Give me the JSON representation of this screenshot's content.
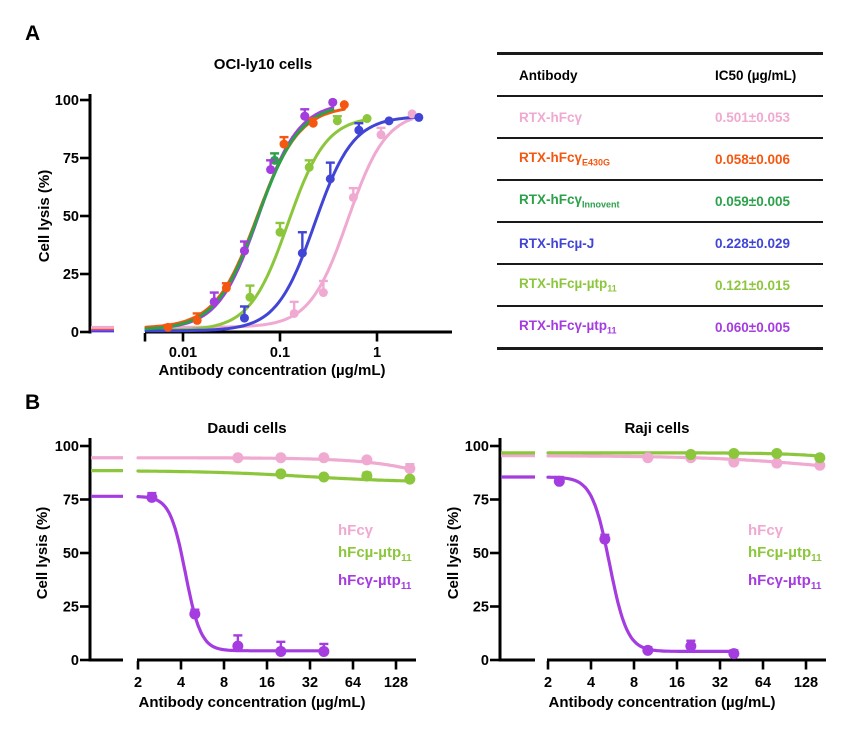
{
  "figure": {
    "background": "#ffffff"
  },
  "panel_a": {
    "label": "A"
  },
  "panel_b": {
    "label": "B"
  },
  "table": {
    "headers": [
      "Antibody",
      "IC50 (µg/mL)"
    ],
    "rows": [
      {
        "label_main": "RTX-hFcγ",
        "label_sub": "",
        "value": "0.501±0.053",
        "color": "#F0A9D0"
      },
      {
        "label_main": "RTX-hFcγ",
        "label_sub": "E430G",
        "value": "0.058±0.006",
        "color": "#F4570F"
      },
      {
        "label_main": "RTX-hFcγ",
        "label_sub": "Innovent",
        "value": "0.059±0.005",
        "color": "#2BA14A"
      },
      {
        "label_main": "RTX-hFcµ-J",
        "label_sub": "",
        "value": "0.228±0.029",
        "color": "#4145D6"
      },
      {
        "label_main": "RTX-hFcµ-µtp",
        "label_sub": "11",
        "value": "0.121±0.015",
        "color": "#8CC63C"
      },
      {
        "label_main": "RTX-hFcγ-µtp",
        "label_sub": "11",
        "value": "0.060±0.005",
        "color": "#A43CE0"
      }
    ]
  },
  "chart_data": [
    {
      "id": "oci",
      "type": "scatter",
      "title": "OCI-ly10 cells",
      "xlabel": "Antibody concentration (µg/mL)",
      "ylabel": "Cell lysis (%)",
      "xscale": "log10",
      "axis_break": true,
      "xticks": [
        "0.01",
        "0.1",
        "1"
      ],
      "xtick_values": [
        0.01,
        0.1,
        1
      ],
      "yticks": [
        0,
        25,
        50,
        75,
        100
      ],
      "ylim": [
        0,
        100
      ],
      "xlim": [
        0.004,
        5.9
      ],
      "series": [
        {
          "name": "RTX-hFcγ",
          "color": "#F0A9D0",
          "fit": {
            "top": 95,
            "bottom": 2.0,
            "ec50": 0.501,
            "hill": 2.2,
            "dir": "up"
          },
          "points": [
            [
              0.14,
              8,
              5
            ],
            [
              0.28,
              17,
              5
            ],
            [
              0.57,
              58,
              4
            ],
            [
              1.1,
              85,
              3
            ],
            [
              2.3,
              94,
              0
            ]
          ]
        },
        {
          "name": "RTX-hFcγ-E430G",
          "color": "#F4570F",
          "fit": {
            "top": 97.5,
            "bottom": 1.6,
            "ec50": 0.058,
            "hill": 2.0,
            "dir": "up"
          },
          "points": [
            [
              0.007,
              2,
              1
            ],
            [
              0.014,
              5,
              3
            ],
            [
              0.028,
              19,
              2
            ],
            [
              0.11,
              81,
              3
            ],
            [
              0.22,
              90,
              2
            ],
            [
              0.46,
              98,
              0
            ]
          ]
        },
        {
          "name": "RTX-hFcγ-Innovent",
          "color": "#2BA14A",
          "fit": {
            "top": 98.5,
            "bottom": 0.9,
            "ec50": 0.059,
            "hill": 2.0,
            "dir": "up"
          },
          "points": [
            [
              0.021,
              13,
              0
            ],
            [
              0.043,
              35,
              0
            ],
            [
              0.088,
              74,
              3
            ],
            [
              0.18,
              93,
              0
            ],
            [
              0.35,
              99,
              0
            ]
          ]
        },
        {
          "name": "RTX-hFcµ-J",
          "color": "#4145D6",
          "fit": {
            "top": 93,
            "bottom": 0.5,
            "ec50": 0.228,
            "hill": 2.2,
            "dir": "up"
          },
          "points": [
            [
              0.043,
              6,
              5
            ],
            [
              0.17,
              34,
              9
            ],
            [
              0.33,
              66,
              7
            ],
            [
              0.65,
              87,
              3
            ],
            [
              1.33,
              91,
              0
            ],
            [
              2.7,
              92.5,
              0
            ]
          ]
        },
        {
          "name": "RTX-hFcµ-µtp11",
          "color": "#8CC63C",
          "fit": {
            "top": 93,
            "bottom": 0.7,
            "ec50": 0.121,
            "hill": 2.2,
            "dir": "up"
          },
          "points": [
            [
              0.049,
              15,
              5
            ],
            [
              0.1,
              43,
              4
            ],
            [
              0.2,
              71,
              3
            ],
            [
              0.39,
              91,
              2
            ],
            [
              0.79,
              92,
              0
            ]
          ]
        },
        {
          "name": "RTX-hFcγ-µtp11",
          "color": "#A43CE0",
          "fit": {
            "top": 99,
            "bottom": 1.15,
            "ec50": 0.06,
            "hill": 2.1,
            "dir": "up"
          },
          "points": [
            [
              0.021,
              13,
              4
            ],
            [
              0.043,
              35,
              4
            ],
            [
              0.08,
              70,
              4
            ],
            [
              0.18,
              93,
              3
            ],
            [
              0.35,
              99,
              0
            ]
          ]
        }
      ]
    },
    {
      "id": "daudi",
      "type": "scatter",
      "title": "Daudi cells",
      "xlabel": "Antibody concentration (µg/mL)",
      "ylabel": "Cell lysis (%)",
      "xscale": "log2",
      "axis_break": true,
      "xticks": [
        "2",
        "4",
        "8",
        "16",
        "32",
        "64",
        "128"
      ],
      "xtick_values": [
        2,
        4,
        8,
        16,
        32,
        64,
        128
      ],
      "yticks": [
        0,
        25,
        50,
        75,
        100
      ],
      "ylim": [
        0,
        100
      ],
      "xlim": [
        2,
        180
      ],
      "legend": [
        {
          "main": "hFcγ",
          "sub": ""
        },
        {
          "main": "hFcµ-µtp",
          "sub": "11"
        },
        {
          "main": "hFcγ-µtp",
          "sub": "11"
        }
      ],
      "series": [
        {
          "name": "hFcγ",
          "color": "#F0A9D0",
          "fit": {
            "top": 94.5,
            "bottom": 60,
            "ec50": 500,
            "hill": 1.5,
            "dir": "down"
          },
          "points": [
            [
              10,
              94.5,
              0
            ],
            [
              20,
              94.5,
              0
            ],
            [
              40,
              94.5,
              0
            ],
            [
              80,
              93.5,
              0
            ],
            [
              160,
              89.5,
              2
            ]
          ]
        },
        {
          "name": "hFcµ-µtp11",
          "color": "#8CC63C",
          "fit": {
            "top": 88.5,
            "bottom": 83,
            "ec50": 30,
            "hill": 1.2,
            "dir": "down"
          },
          "points": [
            [
              20,
              87,
              0
            ],
            [
              40,
              85.5,
              0
            ],
            [
              80,
              86,
              1.5
            ],
            [
              160,
              84.5,
              0
            ]
          ]
        },
        {
          "name": "hFcγ-µtp11",
          "color": "#A43CE0",
          "fit": {
            "top": 76.5,
            "bottom": 4.3,
            "ec50": 4.3,
            "hill": 8,
            "dir": "down"
          },
          "points": [
            [
              2.5,
              76,
              2
            ],
            [
              5,
              21.5,
              2
            ],
            [
              10,
              6.5,
              5
            ],
            [
              20,
              4,
              4.5
            ],
            [
              40,
              4,
              3.5
            ]
          ]
        }
      ]
    },
    {
      "id": "raji",
      "type": "scatter",
      "title": "Raji cells",
      "xlabel": "Antibody concentration (µg/mL)",
      "ylabel": "Cell lysis (%)",
      "xscale": "log2",
      "axis_break": true,
      "xticks": [
        "2",
        "4",
        "8",
        "16",
        "32",
        "64",
        "128"
      ],
      "xtick_values": [
        2,
        4,
        8,
        16,
        32,
        64,
        128
      ],
      "yticks": [
        0,
        25,
        50,
        75,
        100
      ],
      "ylim": [
        0,
        100
      ],
      "xlim": [
        2,
        180
      ],
      "legend": [
        {
          "main": "hFcγ",
          "sub": ""
        },
        {
          "main": "hFcµ-µtp",
          "sub": "11"
        },
        {
          "main": "hFcγ-µtp",
          "sub": "11"
        }
      ],
      "series": [
        {
          "name": "hFcγ",
          "color": "#F0A9D0",
          "fit": {
            "top": 95.5,
            "bottom": 85,
            "ec50": 200,
            "hill": 1,
            "dir": "down"
          },
          "points": [
            [
              10,
              94.5,
              0
            ],
            [
              20,
              94.5,
              0
            ],
            [
              40,
              92.5,
              2
            ],
            [
              80,
              92,
              0
            ],
            [
              160,
              91,
              0
            ]
          ]
        },
        {
          "name": "hFcµ-µtp11",
          "color": "#8CC63C",
          "fit": {
            "top": 96.8,
            "bottom": 90,
            "ec50": 300,
            "hill": 2,
            "dir": "down"
          },
          "points": [
            [
              20,
              96,
              0
            ],
            [
              40,
              96.5,
              1
            ],
            [
              80,
              96.5,
              1
            ],
            [
              160,
              94.5,
              0
            ]
          ]
        },
        {
          "name": "hFcγ-µtp11",
          "color": "#A43CE0",
          "fit": {
            "top": 85.5,
            "bottom": 4,
            "ec50": 5.4,
            "hill": 7,
            "dir": "down"
          },
          "points": [
            [
              2.4,
              83.5,
              2
            ],
            [
              5,
              56.5,
              2
            ],
            [
              10,
              4.5,
              1.5
            ],
            [
              20,
              6.5,
              2.5
            ],
            [
              40,
              3,
              1.5
            ]
          ]
        }
      ]
    }
  ]
}
